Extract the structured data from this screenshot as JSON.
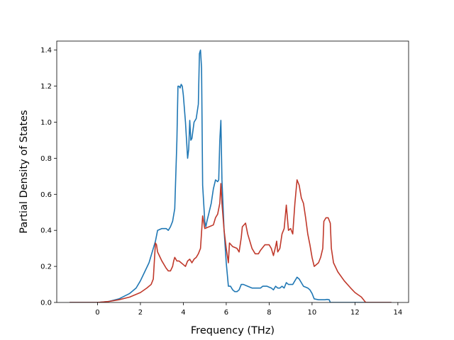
{
  "chart_data": {
    "type": "line",
    "title": "",
    "xlabel": "Frequency (THz)",
    "ylabel": "Partial Density of States",
    "xlim": [
      -1.9,
      14.5
    ],
    "ylim": [
      0,
      1.45
    ],
    "xticks": [
      0,
      2,
      4,
      6,
      8,
      10,
      12,
      14
    ],
    "yticks": [
      0.0,
      0.2,
      0.4,
      0.6,
      0.8,
      1.0,
      1.2,
      1.4
    ],
    "xtick_labels": [
      "0",
      "2",
      "4",
      "6",
      "8",
      "10",
      "12",
      "14"
    ],
    "ytick_labels": [
      "0.0",
      "0.2",
      "0.4",
      "0.6",
      "0.8",
      "1.0",
      "1.2",
      "1.4"
    ],
    "grid": false,
    "series": [
      {
        "color": "#1f77b4",
        "points": [
          [
            -1.3,
            0.0
          ],
          [
            0.0,
            0.0
          ],
          [
            0.5,
            0.005
          ],
          [
            1.0,
            0.02
          ],
          [
            1.5,
            0.05
          ],
          [
            1.8,
            0.08
          ],
          [
            2.0,
            0.12
          ],
          [
            2.2,
            0.17
          ],
          [
            2.4,
            0.22
          ],
          [
            2.6,
            0.3
          ],
          [
            2.7,
            0.34
          ],
          [
            2.8,
            0.4
          ],
          [
            3.0,
            0.41
          ],
          [
            3.1,
            0.41
          ],
          [
            3.2,
            0.41
          ],
          [
            3.3,
            0.4
          ],
          [
            3.4,
            0.42
          ],
          [
            3.5,
            0.45
          ],
          [
            3.6,
            0.52
          ],
          [
            3.7,
            0.9
          ],
          [
            3.75,
            1.2
          ],
          [
            3.8,
            1.2
          ],
          [
            3.85,
            1.19
          ],
          [
            3.9,
            1.21
          ],
          [
            3.95,
            1.2
          ],
          [
            4.0,
            1.15
          ],
          [
            4.1,
            1.0
          ],
          [
            4.2,
            0.8
          ],
          [
            4.25,
            0.85
          ],
          [
            4.3,
            1.01
          ],
          [
            4.35,
            0.9
          ],
          [
            4.4,
            0.91
          ],
          [
            4.5,
            1.0
          ],
          [
            4.6,
            1.02
          ],
          [
            4.7,
            1.1
          ],
          [
            4.75,
            1.38
          ],
          [
            4.8,
            1.4
          ],
          [
            4.85,
            1.3
          ],
          [
            4.9,
            0.65
          ],
          [
            5.0,
            0.45
          ],
          [
            5.05,
            0.42
          ],
          [
            5.1,
            0.45
          ],
          [
            5.2,
            0.5
          ],
          [
            5.3,
            0.55
          ],
          [
            5.4,
            0.63
          ],
          [
            5.5,
            0.68
          ],
          [
            5.6,
            0.67
          ],
          [
            5.65,
            0.68
          ],
          [
            5.7,
            0.9
          ],
          [
            5.75,
            1.01
          ],
          [
            5.8,
            0.68
          ],
          [
            5.9,
            0.4
          ],
          [
            6.0,
            0.22
          ],
          [
            6.1,
            0.09
          ],
          [
            6.2,
            0.09
          ],
          [
            6.3,
            0.07
          ],
          [
            6.4,
            0.06
          ],
          [
            6.5,
            0.06
          ],
          [
            6.6,
            0.07
          ],
          [
            6.7,
            0.1
          ],
          [
            6.8,
            0.1
          ],
          [
            7.0,
            0.09
          ],
          [
            7.2,
            0.08
          ],
          [
            7.4,
            0.08
          ],
          [
            7.6,
            0.08
          ],
          [
            7.7,
            0.09
          ],
          [
            7.9,
            0.09
          ],
          [
            8.1,
            0.08
          ],
          [
            8.2,
            0.07
          ],
          [
            8.3,
            0.09
          ],
          [
            8.4,
            0.08
          ],
          [
            8.5,
            0.08
          ],
          [
            8.6,
            0.09
          ],
          [
            8.7,
            0.08
          ],
          [
            8.8,
            0.11
          ],
          [
            8.9,
            0.1
          ],
          [
            9.0,
            0.1
          ],
          [
            9.1,
            0.1
          ],
          [
            9.2,
            0.12
          ],
          [
            9.3,
            0.14
          ],
          [
            9.4,
            0.13
          ],
          [
            9.5,
            0.11
          ],
          [
            9.6,
            0.09
          ],
          [
            9.8,
            0.08
          ],
          [
            9.9,
            0.07
          ],
          [
            10.0,
            0.05
          ],
          [
            10.1,
            0.02
          ],
          [
            10.3,
            0.015
          ],
          [
            10.5,
            0.015
          ],
          [
            10.6,
            0.015
          ],
          [
            10.7,
            0.017
          ],
          [
            10.8,
            0.015
          ],
          [
            10.85,
            0.0
          ],
          [
            13.7,
            0.0
          ]
        ]
      },
      {
        "color": "#c0392b",
        "points": [
          [
            -1.3,
            0.0
          ],
          [
            0.0,
            0.0
          ],
          [
            0.5,
            0.005
          ],
          [
            1.0,
            0.015
          ],
          [
            1.5,
            0.03
          ],
          [
            2.0,
            0.055
          ],
          [
            2.3,
            0.08
          ],
          [
            2.5,
            0.1
          ],
          [
            2.6,
            0.13
          ],
          [
            2.7,
            0.33
          ],
          [
            2.75,
            0.32
          ],
          [
            2.8,
            0.28
          ],
          [
            3.0,
            0.23
          ],
          [
            3.2,
            0.19
          ],
          [
            3.3,
            0.175
          ],
          [
            3.4,
            0.175
          ],
          [
            3.5,
            0.2
          ],
          [
            3.55,
            0.23
          ],
          [
            3.6,
            0.25
          ],
          [
            3.7,
            0.23
          ],
          [
            3.8,
            0.23
          ],
          [
            3.9,
            0.22
          ],
          [
            4.0,
            0.21
          ],
          [
            4.1,
            0.2
          ],
          [
            4.2,
            0.23
          ],
          [
            4.3,
            0.24
          ],
          [
            4.4,
            0.22
          ],
          [
            4.5,
            0.24
          ],
          [
            4.6,
            0.25
          ],
          [
            4.7,
            0.27
          ],
          [
            4.8,
            0.3
          ],
          [
            4.9,
            0.48
          ],
          [
            5.0,
            0.41
          ],
          [
            5.2,
            0.42
          ],
          [
            5.4,
            0.43
          ],
          [
            5.5,
            0.47
          ],
          [
            5.6,
            0.49
          ],
          [
            5.7,
            0.55
          ],
          [
            5.75,
            0.66
          ],
          [
            5.8,
            0.55
          ],
          [
            5.9,
            0.4
          ],
          [
            6.0,
            0.3
          ],
          [
            6.1,
            0.22
          ],
          [
            6.15,
            0.33
          ],
          [
            6.3,
            0.31
          ],
          [
            6.5,
            0.3
          ],
          [
            6.6,
            0.28
          ],
          [
            6.7,
            0.36
          ],
          [
            6.75,
            0.42
          ],
          [
            6.9,
            0.44
          ],
          [
            7.0,
            0.38
          ],
          [
            7.2,
            0.3
          ],
          [
            7.35,
            0.27
          ],
          [
            7.5,
            0.27
          ],
          [
            7.6,
            0.29
          ],
          [
            7.8,
            0.32
          ],
          [
            8.0,
            0.32
          ],
          [
            8.1,
            0.3
          ],
          [
            8.2,
            0.26
          ],
          [
            8.3,
            0.31
          ],
          [
            8.35,
            0.34
          ],
          [
            8.4,
            0.28
          ],
          [
            8.5,
            0.3
          ],
          [
            8.6,
            0.38
          ],
          [
            8.7,
            0.41
          ],
          [
            8.8,
            0.54
          ],
          [
            8.9,
            0.4
          ],
          [
            9.0,
            0.41
          ],
          [
            9.1,
            0.38
          ],
          [
            9.2,
            0.55
          ],
          [
            9.3,
            0.68
          ],
          [
            9.4,
            0.65
          ],
          [
            9.5,
            0.58
          ],
          [
            9.6,
            0.55
          ],
          [
            9.7,
            0.47
          ],
          [
            9.8,
            0.38
          ],
          [
            9.9,
            0.32
          ],
          [
            10.0,
            0.25
          ],
          [
            10.1,
            0.2
          ],
          [
            10.3,
            0.22
          ],
          [
            10.4,
            0.25
          ],
          [
            10.5,
            0.3
          ],
          [
            10.55,
            0.45
          ],
          [
            10.65,
            0.47
          ],
          [
            10.75,
            0.47
          ],
          [
            10.85,
            0.44
          ],
          [
            10.9,
            0.3
          ],
          [
            11.0,
            0.22
          ],
          [
            11.2,
            0.17
          ],
          [
            11.5,
            0.12
          ],
          [
            11.8,
            0.08
          ],
          [
            12.0,
            0.055
          ],
          [
            12.3,
            0.03
          ],
          [
            12.5,
            0.0
          ],
          [
            13.7,
            0.0
          ]
        ]
      }
    ]
  }
}
